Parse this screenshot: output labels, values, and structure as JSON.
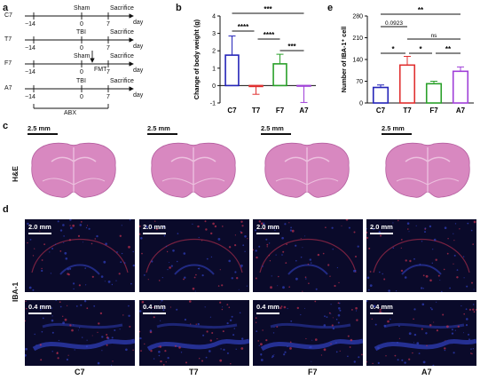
{
  "panels": {
    "a": "a",
    "b": "b",
    "c": "c",
    "d": "d",
    "e": "e"
  },
  "timeline": {
    "rows": [
      {
        "group": "C7",
        "treatment": "Sham",
        "sacrifice": "Sacrifice",
        "day": "day",
        "t0": "−14",
        "t1": "0",
        "t2": "7"
      },
      {
        "group": "T7",
        "treatment": "TBI",
        "sacrifice": "Sacrifice",
        "day": "day",
        "t0": "−14",
        "t1": "0",
        "t2": "7"
      },
      {
        "group": "F7",
        "treatment": "Sham",
        "fmt": "FMT",
        "sacrifice": "Sacrifice",
        "day": "day",
        "t0": "−14",
        "t1": "0",
        "t2": "7"
      },
      {
        "group": "A7",
        "treatment": "TBI",
        "sacrifice": "Sacrifice",
        "day": "day",
        "t0": "−14",
        "t1": "0",
        "t2": "7"
      }
    ],
    "abx": "ABX"
  },
  "chart_data": [
    {
      "type": "bar",
      "title": "",
      "xlabel": "",
      "ylabel": "Change of body weight (g)",
      "ylim": [
        -1,
        4
      ],
      "yticks": [
        "-1",
        "0",
        "1",
        "2",
        "3",
        "4"
      ],
      "categories": [
        "C7",
        "T7",
        "F7",
        "A7"
      ],
      "values": [
        1.75,
        -0.05,
        1.25,
        -0.02
      ],
      "errors": [
        1.1,
        0.45,
        0.55,
        0.95
      ],
      "colors": [
        "#2424b8",
        "#e03030",
        "#2aa02a",
        "#a040d8"
      ],
      "significance": [
        {
          "pair": [
            "C7",
            "A7"
          ],
          "label": "***"
        },
        {
          "pair": [
            "C7",
            "T7"
          ],
          "label": "****"
        },
        {
          "pair": [
            "T7",
            "F7"
          ],
          "label": "****"
        },
        {
          "pair": [
            "F7",
            "A7"
          ],
          "label": "***"
        }
      ]
    },
    {
      "type": "bar",
      "title": "",
      "xlabel": "",
      "ylabel": "Number of IBA-1⁺ cell",
      "ylim": [
        0,
        280
      ],
      "yticks": [
        "0",
        "70",
        "140",
        "210",
        "280"
      ],
      "categories": [
        "C7",
        "T7",
        "F7",
        "A7"
      ],
      "values": [
        50,
        122,
        62,
        102
      ],
      "errors": [
        8,
        28,
        8,
        14
      ],
      "colors": [
        "#2424b8",
        "#e03030",
        "#2aa02a",
        "#a040d8"
      ],
      "significance": [
        {
          "pair": [
            "C7",
            "A7"
          ],
          "label": "**"
        },
        {
          "pair": [
            "C7",
            "T7"
          ],
          "label": "0.0923"
        },
        {
          "pair": [
            "T7",
            "A7"
          ],
          "label": "ns"
        },
        {
          "pair": [
            "C7",
            "T7"
          ],
          "label": "*"
        },
        {
          "pair": [
            "T7",
            "F7"
          ],
          "label": "*"
        },
        {
          "pair": [
            "F7",
            "A7"
          ],
          "label": "**"
        }
      ]
    }
  ],
  "he": {
    "row_label": "H&E",
    "scale": "2.5 mm",
    "count": 4
  },
  "iba": {
    "row_label": "IBA-1",
    "scale_top": "2.0 mm",
    "scale_bottom": "0.4 mm"
  },
  "groups": [
    "C7",
    "T7",
    "F7",
    "A7"
  ],
  "colors": {
    "he_pink": "#d888c0",
    "he_light": "#ecc0de",
    "if_dark": "#0a0a2a",
    "if_blue": "#3040c0",
    "if_red": "#c03050"
  }
}
